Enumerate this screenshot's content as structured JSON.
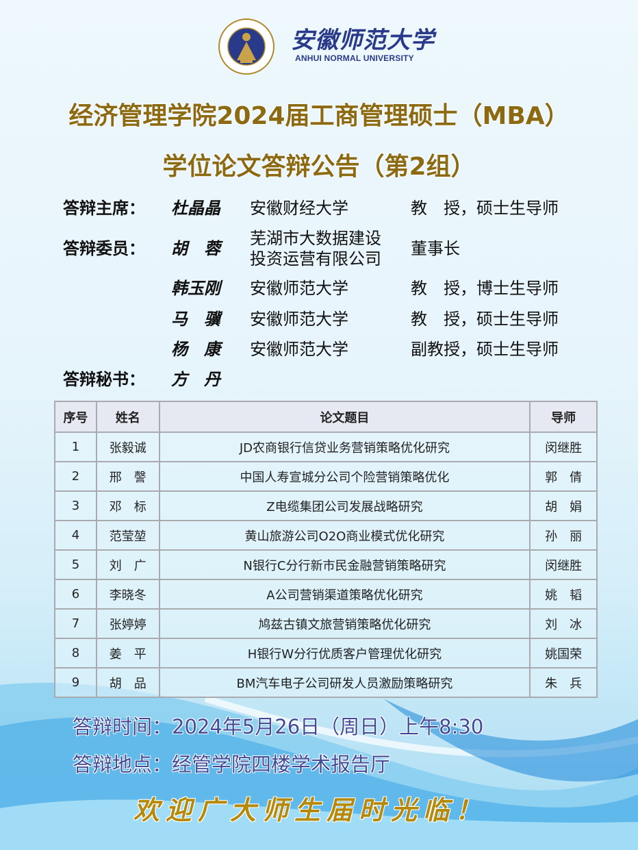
{
  "header": {
    "logo_seal_text": "安徽师范大学 ANHUI NORMAL UNIVERSITY 1928",
    "university_cn": "安徽师范大学",
    "university_en": "ANHUI NORMAL UNIVERSITY"
  },
  "title": {
    "line1": "经济管理学院2024届工商管理硕士（MBA）",
    "line2": "学位论文答辩公告（第2组）"
  },
  "committee": {
    "chair_label": "答辩主席：",
    "members_label": "答辩委员：",
    "secretary_label": "答辩秘书：",
    "chair": {
      "name": "杜晶晶",
      "org": "安徽财经大学",
      "title": "教　授，硕士生导师"
    },
    "members": [
      {
        "name": "胡　蓉",
        "org_line1": "芜湖市大数据建设",
        "org_line2": "投资运营有限公司",
        "title": "董事长"
      },
      {
        "name": "韩玉刚",
        "org": "安徽师范大学",
        "title": "教　授，博士生导师"
      },
      {
        "name": "马　骥",
        "org": "安徽师范大学",
        "title": "教　授，硕士生导师"
      },
      {
        "name": "杨　康",
        "org": "安徽师范大学",
        "title": "副教授，硕士生导师"
      }
    ],
    "secretary": {
      "name": "方　丹"
    }
  },
  "table": {
    "headers": [
      "序号",
      "姓名",
      "论文题目",
      "导师"
    ],
    "rows": [
      [
        "1",
        "张毅诚",
        "JD农商银行信贷业务营销策略优化研究",
        "闵继胜"
      ],
      [
        "2",
        "邢　謦",
        "中国人寿宣城分公司个险营销策略优化",
        "郭　倩"
      ],
      [
        "3",
        "邓　标",
        "Z电缆集团公司发展战略研究",
        "胡　娟"
      ],
      [
        "4",
        "范莹堃",
        "黄山旅游公司O2O商业模式优化研究",
        "孙　丽"
      ],
      [
        "5",
        "刘　广",
        "N银行C分行新市民金融营销策略研究",
        "闵继胜"
      ],
      [
        "6",
        "李晓冬",
        "A公司营销渠道策略优化研究",
        "姚　韬"
      ],
      [
        "7",
        "张婷婷",
        "鸠兹古镇文旅营销策略优化研究",
        "刘　冰"
      ],
      [
        "8",
        "姜　平",
        "H银行W分行优质客户管理优化研究",
        "姚国荣"
      ],
      [
        "9",
        "胡　品",
        "BM汽车电子公司研发人员激励策略研究",
        "朱　兵"
      ]
    ]
  },
  "footer": {
    "time": "答辩时间：2024年5月26日（周日）上午8:30",
    "location": "答辩地点：经管学院四楼学术报告厅",
    "welcome": "欢迎广大师生届时光临！"
  },
  "colors": {
    "title": "#8c6a12",
    "info": "#434a96",
    "welcome": "#b58a0c",
    "logo_blue": "#2a3a8a",
    "logo_gold": "#b08a2a"
  }
}
